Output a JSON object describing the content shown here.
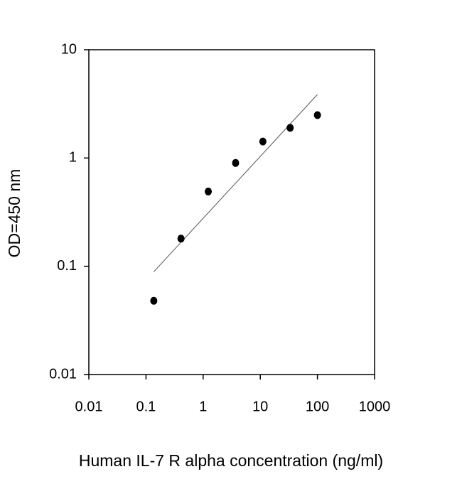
{
  "chart_data": {
    "type": "scatter",
    "x_label": "Human IL-7 R alpha concentration (ng/ml)",
    "y_label": "OD=450 nm",
    "x": [
      0.137,
      0.41,
      1.23,
      3.7,
      11.1,
      33.3,
      100
    ],
    "values": [
      0.048,
      0.18,
      0.49,
      0.9,
      1.42,
      1.9,
      2.49
    ],
    "color": "#000000",
    "trendline": {
      "x": [
        0.137,
        100
      ],
      "y": [
        0.089,
        3.86
      ],
      "color": "#555555"
    },
    "xscale": "log",
    "yscale": "log",
    "xlim": [
      0.01,
      1000
    ],
    "ylim": [
      0.01,
      10
    ],
    "xticks": [
      0.01,
      0.1,
      1,
      10,
      100,
      1000
    ],
    "yticks": [
      0.01,
      0.1,
      1,
      10
    ],
    "grid": false
  }
}
